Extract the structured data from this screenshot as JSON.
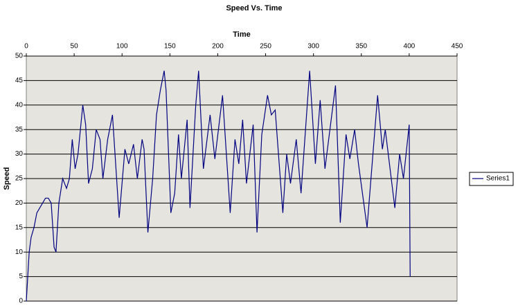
{
  "chart_data": {
    "type": "line",
    "title": "Speed Vs. Time",
    "x_label": "Time",
    "y_label": "Speed",
    "x": [
      0,
      3,
      5,
      8,
      11,
      14,
      17,
      20,
      23,
      26,
      29,
      31,
      34,
      38,
      42,
      45,
      48,
      51,
      54,
      59,
      62,
      65,
      69,
      73,
      77,
      80,
      85,
      90,
      97,
      103,
      107,
      112,
      116,
      121,
      123,
      127,
      132,
      136,
      140,
      144,
      146,
      151,
      155,
      159,
      162,
      168,
      171,
      177,
      180,
      185,
      192,
      197,
      205,
      213,
      218,
      222,
      226,
      230,
      237,
      241,
      246,
      252,
      256,
      260,
      268,
      272,
      276,
      282,
      287,
      296,
      302,
      307,
      312,
      323,
      328,
      334,
      338,
      343,
      347,
      356,
      367,
      372,
      375,
      380,
      385,
      390,
      394,
      400,
      401
    ],
    "series": [
      {
        "name": "Series1",
        "color": "#000080",
        "values": [
          0,
          10,
          13,
          15,
          18,
          19,
          20,
          21,
          21,
          20,
          11,
          10,
          20,
          25,
          23,
          25,
          33,
          27,
          30,
          40,
          36,
          24,
          27,
          35,
          33,
          25,
          33,
          38,
          17,
          31,
          28,
          32,
          25,
          33,
          31,
          14,
          25,
          38,
          43,
          47,
          43,
          18,
          22,
          34,
          25,
          37,
          19,
          40,
          47,
          27,
          38,
          29,
          42,
          18,
          33,
          28,
          37,
          24,
          36,
          14,
          34,
          42,
          38,
          39,
          18,
          30,
          24,
          33,
          22,
          47,
          28,
          41,
          27,
          44,
          16,
          34,
          29,
          35,
          28,
          15,
          42,
          31,
          35,
          27,
          19,
          30,
          25,
          36,
          5
        ]
      }
    ],
    "xlim": [
      0,
      450
    ],
    "xticks": [
      0,
      50,
      100,
      150,
      200,
      250,
      300,
      350,
      400,
      450
    ],
    "ylim": [
      0,
      50
    ],
    "yticks": [
      0,
      5,
      10,
      15,
      20,
      25,
      30,
      35,
      40,
      45,
      50
    ],
    "grid": true,
    "legend": "right"
  }
}
